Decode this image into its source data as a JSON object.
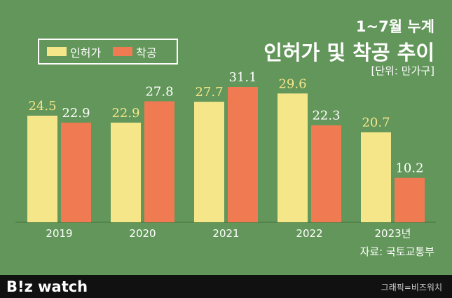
{
  "header": {
    "title_line1": "1~7월 누계",
    "title_line2": "인허가 및 착공 추이",
    "unit": "[단위: 만가구]"
  },
  "source": "자료: 국토교통부",
  "footer": {
    "logo": "B!z watch",
    "credit": "그래픽=비즈워치"
  },
  "colors": {
    "permit": "#f5e68a",
    "start": "#f07b52",
    "background": "#63965a"
  },
  "chart_data": {
    "type": "bar",
    "categories": [
      "2019",
      "2020",
      "2021",
      "2022",
      "2023년"
    ],
    "series": [
      {
        "name": "인허가",
        "values": [
          24.5,
          22.9,
          27.7,
          29.6,
          20.7
        ]
      },
      {
        "name": "착공",
        "values": [
          22.9,
          27.8,
          31.1,
          22.3,
          10.2
        ]
      }
    ],
    "data_labels": [
      [
        "24.5",
        "22.9",
        "27.7",
        "29.6",
        "20.7"
      ],
      [
        "22.9",
        "27.8",
        "31.1",
        "22.3",
        "10.2"
      ]
    ],
    "title": "인허가 및 착공 추이",
    "xlabel": "",
    "ylabel": "",
    "ylim": [
      0,
      31.1
    ],
    "legend": "top-left",
    "grid": false
  }
}
